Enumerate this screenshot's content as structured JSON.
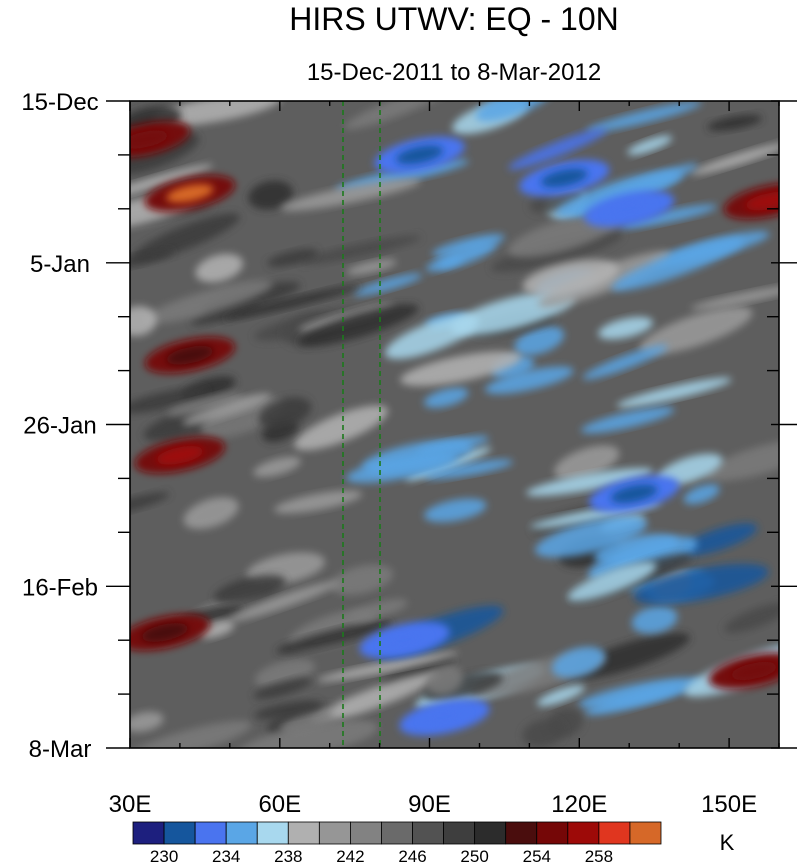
{
  "chart_data": {
    "type": "heatmap",
    "title": "HIRS UTWV: EQ - 10N",
    "subtitle": "15-Dec-2011 to 8-Mar-2012",
    "x_ticks": [
      {
        "value": 30,
        "label": "30E"
      },
      {
        "value": 60,
        "label": "60E"
      },
      {
        "value": 90,
        "label": "90E"
      },
      {
        "value": 120,
        "label": "120E"
      },
      {
        "value": 150,
        "label": "150E"
      }
    ],
    "xlim": [
      30,
      160
    ],
    "y_ticks": [
      {
        "value": 0,
        "label": "15-Dec"
      },
      {
        "value": 21,
        "label": "5-Jan"
      },
      {
        "value": 42,
        "label": "26-Jan"
      },
      {
        "value": 63,
        "label": "16-Feb"
      },
      {
        "value": 84,
        "label": "8-Mar"
      }
    ],
    "ylim": [
      0,
      84
    ],
    "reference_lines_lon": [
      73,
      80
    ],
    "colorbar": {
      "unit": "K",
      "levels": [
        230,
        232,
        234,
        236,
        238,
        240,
        242,
        244,
        246,
        248,
        250,
        252,
        254,
        256,
        258
      ],
      "labels": [
        "230",
        "234",
        "238",
        "242",
        "246",
        "250",
        "254",
        "258"
      ],
      "colors": [
        "#1d1f7e",
        "#15569d",
        "#4a74ef",
        "#5aa6e6",
        "#a8d8ee",
        "#b0b0b0",
        "#969696",
        "#828282",
        "#6a6a6a",
        "#525252",
        "#3e3e3e",
        "#2c2c2c",
        "#4a0d0d",
        "#750707",
        "#9d0a08",
        "#e0361f",
        "#d66828"
      ]
    },
    "features": [
      {
        "lon": 33,
        "day": 5,
        "value": 255
      },
      {
        "lon": 42,
        "day": 12,
        "value": 258
      },
      {
        "lon": 40,
        "day": 46,
        "value": 256
      },
      {
        "lon": 158,
        "day": 13,
        "value": 257
      },
      {
        "lon": 42,
        "day": 33,
        "value": 253
      },
      {
        "lon": 37,
        "day": 69,
        "value": 253
      },
      {
        "lon": 155,
        "day": 74,
        "value": 255
      },
      {
        "lon": 88,
        "day": 7,
        "value": 231
      },
      {
        "lon": 117,
        "day": 10,
        "value": 231
      },
      {
        "lon": 131,
        "day": 51,
        "value": 231
      },
      {
        "lon": 93,
        "day": 80,
        "value": 232
      },
      {
        "lon": 85,
        "day": 70,
        "value": 232
      },
      {
        "lon": 130,
        "day": 14,
        "value": 232
      }
    ]
  }
}
